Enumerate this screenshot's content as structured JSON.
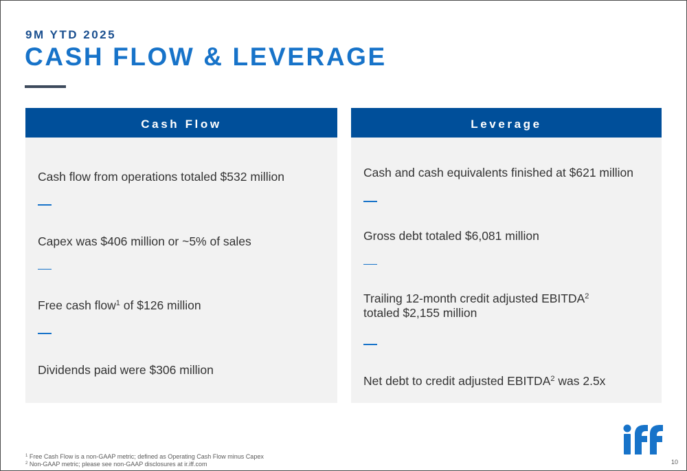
{
  "header": {
    "eyebrow": "9M YTD 2025",
    "title": "CASH FLOW & LEVERAGE"
  },
  "cash_flow": {
    "heading": "Cash Flow",
    "items": [
      {
        "text": "Cash flow from operations totaled $532 million"
      },
      {
        "text_before": "Free cash flow",
        "sup": "1",
        "text_after": " of $126 million"
      }
    ],
    "capex": "Capex was $406 million or ~5% of sales",
    "dividends": "Dividends paid were $306 million"
  },
  "leverage": {
    "heading": "Leverage",
    "cash": "Cash and cash equivalents finished at $621 million",
    "gross_debt": "Gross debt totaled $6,081 million",
    "ebitda_line1": "Trailing 12-month credit adjusted EBITDA",
    "ebitda_sup": "2",
    "ebitda_line2": "totaled $2,155 million",
    "net_debt_before": "Net debt to credit adjusted EBITDA",
    "net_debt_sup": "2",
    "net_debt_after": " was 2.5x"
  },
  "footnotes": [
    {
      "marker": "1",
      "text": " Free Cash Flow is a non-GAAP metric; defined as Operating Cash Flow minus Capex"
    },
    {
      "marker": "2",
      "text": " Non-GAAP metric; please see non-GAAP disclosures at ir.iff.com"
    }
  ],
  "logo_text": "iff",
  "page_number": "10",
  "colors": {
    "accent_blue": "#1773c9",
    "header_blue": "#004f9a",
    "panel_gray": "#f2f2f2"
  }
}
